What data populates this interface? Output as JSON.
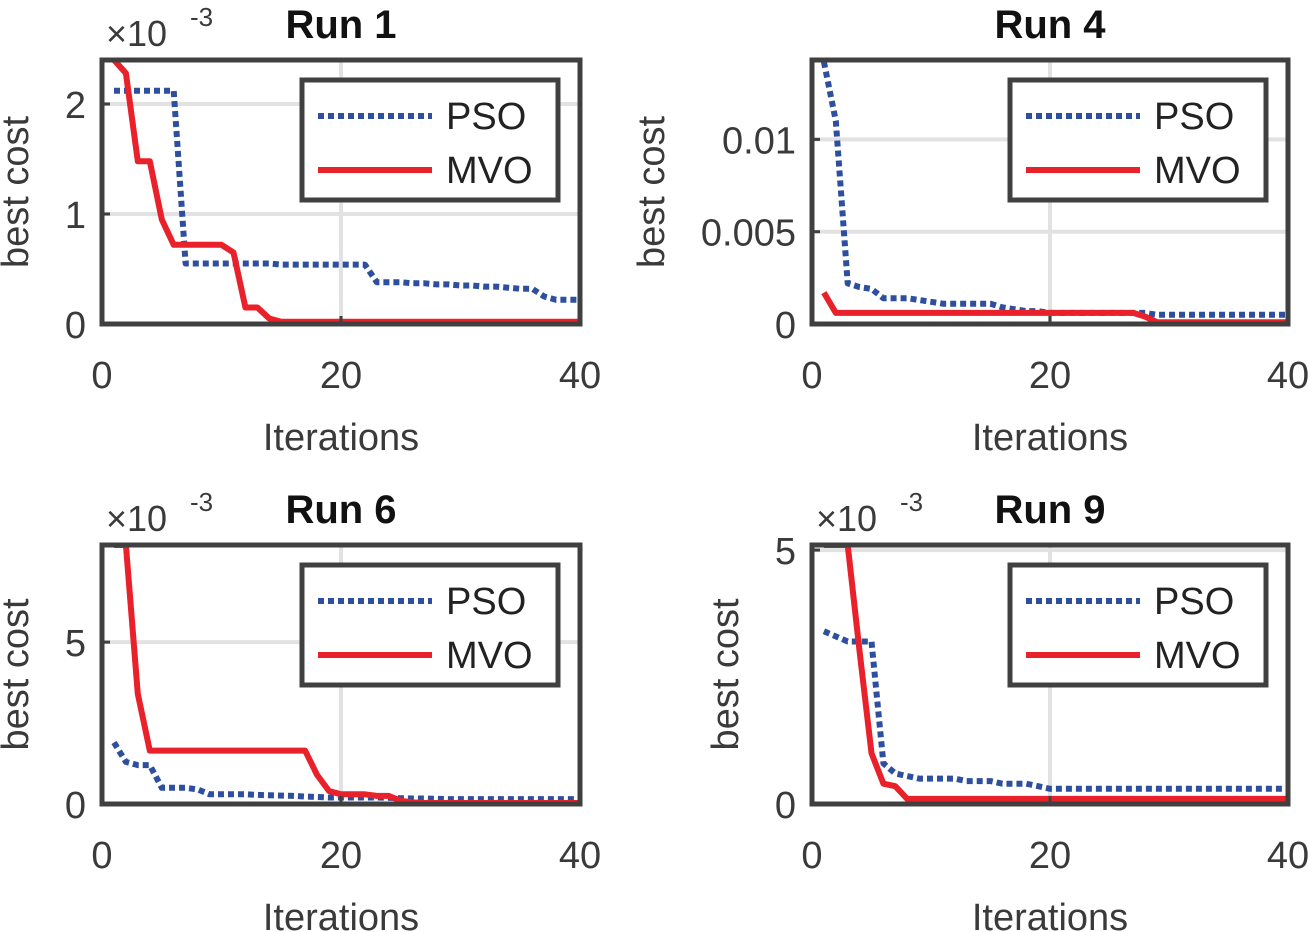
{
  "chart_data": [
    {
      "type": "line",
      "title": "Run 1",
      "xlabel": "Iterations",
      "ylabel": "best cost",
      "exponent_label": "×10",
      "exponent_power": "-3",
      "xlim": [
        0,
        40
      ],
      "ylim": [
        0,
        2.4
      ],
      "xticks": [
        0,
        20,
        40
      ],
      "xtick_labels": [
        "0",
        "20",
        "40"
      ],
      "yticks": [
        0,
        1,
        2
      ],
      "ytick_labels": [
        "0",
        "1",
        "2"
      ],
      "grid": true,
      "legend_position": "top-right",
      "series": [
        {
          "name": "PSO",
          "style": "dotted",
          "color": "#2e4f9e",
          "x": [
            1,
            2,
            3,
            4,
            5,
            6,
            7,
            8,
            9,
            10,
            11,
            12,
            13,
            14,
            15,
            16,
            17,
            18,
            19,
            20,
            21,
            22,
            23,
            24,
            25,
            26,
            27,
            28,
            29,
            30,
            31,
            32,
            33,
            34,
            35,
            36,
            37,
            38,
            39,
            40
          ],
          "y": [
            2.12,
            2.12,
            2.12,
            2.12,
            2.12,
            2.12,
            0.55,
            0.55,
            0.55,
            0.55,
            0.55,
            0.55,
            0.55,
            0.55,
            0.54,
            0.54,
            0.54,
            0.54,
            0.54,
            0.54,
            0.54,
            0.54,
            0.38,
            0.38,
            0.38,
            0.37,
            0.37,
            0.36,
            0.36,
            0.35,
            0.35,
            0.34,
            0.34,
            0.33,
            0.32,
            0.32,
            0.25,
            0.22,
            0.22,
            0.22
          ]
        },
        {
          "name": "MVO",
          "style": "solid",
          "color": "#e8212b",
          "x": [
            1,
            2,
            3,
            4,
            5,
            6,
            7,
            8,
            9,
            10,
            11,
            12,
            13,
            14,
            15,
            16,
            17,
            18,
            19,
            20,
            21,
            22,
            23,
            24,
            25,
            26,
            27,
            28,
            29,
            30,
            31,
            32,
            33,
            34,
            35,
            36,
            37,
            38,
            39,
            40
          ],
          "y": [
            2.4,
            2.28,
            1.48,
            1.48,
            0.95,
            0.72,
            0.72,
            0.72,
            0.72,
            0.72,
            0.65,
            0.15,
            0.15,
            0.05,
            0.02,
            0.02,
            0.02,
            0.02,
            0.02,
            0.02,
            0.02,
            0.02,
            0.02,
            0.02,
            0.02,
            0.02,
            0.02,
            0.02,
            0.02,
            0.02,
            0.02,
            0.02,
            0.02,
            0.02,
            0.02,
            0.02,
            0.02,
            0.02,
            0.02,
            0.02
          ]
        }
      ]
    },
    {
      "type": "line",
      "title": "Run 4",
      "xlabel": "Iterations",
      "ylabel": "best cost",
      "exponent_label": "",
      "exponent_power": "",
      "xlim": [
        0,
        40
      ],
      "ylim": [
        0,
        0.0143
      ],
      "xticks": [
        0,
        20,
        40
      ],
      "xtick_labels": [
        "0",
        "20",
        "40"
      ],
      "yticks": [
        0,
        0.005,
        0.01
      ],
      "ytick_labels": [
        "0",
        "0.005",
        "0.01"
      ],
      "grid": true,
      "legend_position": "top-right",
      "series": [
        {
          "name": "PSO",
          "style": "dotted",
          "color": "#2e4f9e",
          "x": [
            1,
            2,
            3,
            4,
            5,
            6,
            7,
            8,
            9,
            10,
            11,
            12,
            13,
            14,
            15,
            16,
            17,
            18,
            19,
            20,
            21,
            22,
            23,
            24,
            25,
            26,
            27,
            28,
            29,
            30,
            31,
            32,
            33,
            34,
            35,
            36,
            37,
            38,
            39,
            40
          ],
          "y": [
            0.0142,
            0.011,
            0.0022,
            0.002,
            0.0019,
            0.0014,
            0.0014,
            0.0014,
            0.0013,
            0.0012,
            0.0011,
            0.0011,
            0.0011,
            0.0011,
            0.0011,
            0.0009,
            0.0008,
            0.0007,
            0.0007,
            0.0006,
            0.0006,
            0.0006,
            0.0006,
            0.0006,
            0.0006,
            0.0006,
            0.0006,
            0.0006,
            0.0005,
            0.0005,
            0.0005,
            0.0005,
            0.0005,
            0.0005,
            0.0005,
            0.0005,
            0.0005,
            0.0005,
            0.0005,
            0.0005
          ]
        },
        {
          "name": "MVO",
          "style": "solid",
          "color": "#e8212b",
          "x": [
            1,
            2,
            3,
            4,
            5,
            6,
            7,
            8,
            9,
            10,
            11,
            12,
            13,
            14,
            15,
            16,
            17,
            18,
            19,
            20,
            21,
            22,
            23,
            24,
            25,
            26,
            27,
            28,
            29,
            30,
            31,
            32,
            33,
            34,
            35,
            36,
            37,
            38,
            39,
            40
          ],
          "y": [
            0.0017,
            0.0006,
            0.0006,
            0.0006,
            0.0006,
            0.0006,
            0.0006,
            0.0006,
            0.0006,
            0.0006,
            0.0006,
            0.0006,
            0.0006,
            0.0006,
            0.0006,
            0.0006,
            0.0006,
            0.0006,
            0.0006,
            0.0006,
            0.0006,
            0.0006,
            0.0006,
            0.0006,
            0.0006,
            0.0006,
            0.0006,
            0.0004,
            0.0001,
            0.0001,
            0.0001,
            0.0001,
            0.0001,
            0.0001,
            0.0001,
            0.0001,
            0.0001,
            0.0001,
            0.0001,
            0.0001
          ]
        }
      ]
    },
    {
      "type": "line",
      "title": "Run 6",
      "xlabel": "Iterations",
      "ylabel": "best cost",
      "exponent_label": "×10",
      "exponent_power": "-3",
      "xlim": [
        0,
        40
      ],
      "ylim": [
        0,
        8
      ],
      "xticks": [
        0,
        20,
        40
      ],
      "xtick_labels": [
        "0",
        "20",
        "40"
      ],
      "yticks": [
        0,
        5
      ],
      "ytick_labels": [
        "0",
        "5"
      ],
      "grid": true,
      "legend_position": "top-right",
      "series": [
        {
          "name": "PSO",
          "style": "dotted",
          "color": "#2e4f9e",
          "x": [
            1,
            2,
            3,
            4,
            5,
            6,
            7,
            8,
            9,
            10,
            11,
            12,
            13,
            14,
            15,
            16,
            17,
            18,
            19,
            20,
            21,
            22,
            23,
            24,
            25,
            26,
            27,
            28,
            29,
            30,
            31,
            32,
            33,
            34,
            35,
            36,
            37,
            38,
            39,
            40
          ],
          "y": [
            1.9,
            1.3,
            1.2,
            1.2,
            0.5,
            0.5,
            0.5,
            0.45,
            0.3,
            0.3,
            0.3,
            0.3,
            0.28,
            0.27,
            0.26,
            0.25,
            0.23,
            0.22,
            0.2,
            0.2,
            0.2,
            0.2,
            0.2,
            0.19,
            0.18,
            0.17,
            0.17,
            0.16,
            0.15,
            0.15,
            0.15,
            0.15,
            0.15,
            0.15,
            0.15,
            0.15,
            0.15,
            0.15,
            0.15,
            0.15
          ]
        },
        {
          "name": "MVO",
          "style": "solid",
          "color": "#e8212b",
          "x": [
            1,
            2,
            3,
            4,
            5,
            6,
            7,
            8,
            9,
            10,
            11,
            12,
            13,
            14,
            15,
            16,
            17,
            18,
            19,
            20,
            21,
            22,
            23,
            24,
            25,
            26,
            27,
            28,
            29,
            30,
            31,
            32,
            33,
            34,
            35,
            36,
            37,
            38,
            39,
            40
          ],
          "y": [
            8,
            8,
            3.4,
            1.65,
            1.65,
            1.65,
            1.65,
            1.65,
            1.65,
            1.65,
            1.65,
            1.65,
            1.65,
            1.65,
            1.65,
            1.65,
            1.65,
            0.9,
            0.4,
            0.3,
            0.3,
            0.3,
            0.25,
            0.25,
            0.1,
            0.05,
            0.03,
            0.03,
            0.03,
            0.03,
            0.03,
            0.03,
            0.03,
            0.03,
            0.03,
            0.03,
            0.03,
            0.03,
            0.03,
            0.03
          ]
        }
      ]
    },
    {
      "type": "line",
      "title": "Run 9",
      "xlabel": "Iterations",
      "ylabel": "best cost",
      "exponent_label": "×10",
      "exponent_power": "-3",
      "xlim": [
        0,
        40
      ],
      "ylim": [
        0,
        5.1
      ],
      "xticks": [
        0,
        20,
        40
      ],
      "xtick_labels": [
        "0",
        "20",
        "40"
      ],
      "yticks": [
        0,
        5
      ],
      "ytick_labels": [
        "0",
        "5"
      ],
      "grid": true,
      "legend_position": "top-right",
      "series": [
        {
          "name": "PSO",
          "style": "dotted",
          "color": "#2e4f9e",
          "x": [
            1,
            2,
            3,
            4,
            5,
            6,
            7,
            8,
            9,
            10,
            11,
            12,
            13,
            14,
            15,
            16,
            17,
            18,
            19,
            20,
            21,
            22,
            23,
            24,
            25,
            26,
            27,
            28,
            29,
            30,
            31,
            32,
            33,
            34,
            35,
            36,
            37,
            38,
            39,
            40
          ],
          "y": [
            3.4,
            3.3,
            3.2,
            3.2,
            3.2,
            0.8,
            0.6,
            0.55,
            0.5,
            0.5,
            0.5,
            0.5,
            0.45,
            0.45,
            0.45,
            0.4,
            0.4,
            0.4,
            0.35,
            0.3,
            0.3,
            0.3,
            0.3,
            0.3,
            0.3,
            0.3,
            0.3,
            0.3,
            0.3,
            0.3,
            0.3,
            0.3,
            0.3,
            0.3,
            0.3,
            0.3,
            0.3,
            0.3,
            0.3,
            0.3
          ]
        },
        {
          "name": "MVO",
          "style": "solid",
          "color": "#e8212b",
          "x": [
            1,
            2,
            3,
            4,
            5,
            6,
            7,
            8,
            9,
            10,
            11,
            12,
            13,
            14,
            15,
            16,
            17,
            18,
            19,
            20,
            21,
            22,
            23,
            24,
            25,
            26,
            27,
            28,
            29,
            30,
            31,
            32,
            33,
            34,
            35,
            36,
            37,
            38,
            39,
            40
          ],
          "y": [
            5.1,
            5.1,
            5.1,
            3.0,
            1.0,
            0.4,
            0.35,
            0.1,
            0.1,
            0.1,
            0.1,
            0.1,
            0.1,
            0.1,
            0.1,
            0.1,
            0.1,
            0.1,
            0.1,
            0.1,
            0.1,
            0.1,
            0.1,
            0.1,
            0.1,
            0.1,
            0.1,
            0.1,
            0.1,
            0.1,
            0.1,
            0.1,
            0.1,
            0.1,
            0.1,
            0.1,
            0.1,
            0.1,
            0.1,
            0.1
          ]
        }
      ]
    }
  ]
}
